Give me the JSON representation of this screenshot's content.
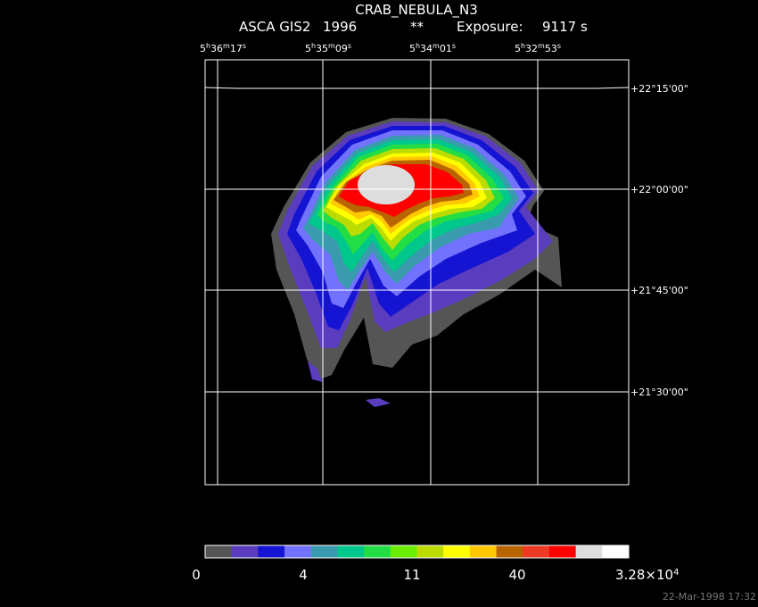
{
  "header": {
    "title": "CRAB_NEBULA_N3",
    "instrument": "ASCA GIS2",
    "year": "1996",
    "flag": "**",
    "exposure_label": "Exposure:",
    "exposure": "9117 s"
  },
  "ra_labels": [
    {
      "h": "5",
      "hu": "h",
      "m": "36",
      "mu": "m",
      "s": "17",
      "su": "s"
    },
    {
      "h": "5",
      "hu": "h",
      "m": "35",
      "mu": "m",
      "s": "09",
      "su": "s"
    },
    {
      "h": "5",
      "hu": "h",
      "m": "34",
      "mu": "m",
      "s": "01",
      "su": "s"
    },
    {
      "h": "5",
      "hu": "h",
      "m": "32",
      "mu": "m",
      "s": "53",
      "su": "s"
    }
  ],
  "dec_labels": [
    "+22°15'00\"",
    "+22°00'00\"",
    "+21°45'00\"",
    "+21°30'00\""
  ],
  "colorbar": {
    "colors": [
      "#555555",
      "#5a3cbf",
      "#1414d2",
      "#7272ff",
      "#3a9aae",
      "#00c88c",
      "#22dd44",
      "#6aee00",
      "#bcdc00",
      "#ffff00",
      "#ffc800",
      "#b86400",
      "#ee3a24",
      "#ff0000",
      "#dddddd",
      "#ffffff"
    ],
    "labels": [
      "0",
      "4",
      "11",
      "40"
    ],
    "max_mantissa": "3.28×10",
    "max_exponent": "4"
  },
  "footer": {
    "date": "22-Mar-1998 17:32"
  }
}
